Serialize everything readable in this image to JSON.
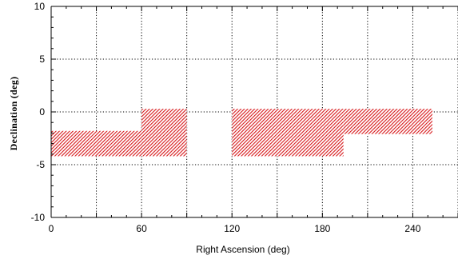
{
  "chart_data": {
    "type": "area",
    "xlabel": "Right Ascension (deg)",
    "ylabel": "Declination (deg)",
    "xlim": [
      0,
      270
    ],
    "ylim": [
      -10,
      10
    ],
    "x_ticks": [
      0,
      60,
      120,
      180,
      240
    ],
    "y_ticks": [
      -10,
      -5,
      0,
      5,
      10
    ],
    "x_grid": [
      0,
      30,
      60,
      90,
      120,
      150,
      180,
      210,
      240,
      270
    ],
    "y_grid": [
      -10,
      -5,
      0,
      5,
      10
    ],
    "grid": true,
    "grid_style": "dotted",
    "regions": [
      {
        "ra_min": 0,
        "ra_max": 60,
        "dec_min": -4.2,
        "dec_max": -1.8
      },
      {
        "ra_min": 60,
        "ra_max": 90,
        "dec_min": -4.2,
        "dec_max": 0.3
      },
      {
        "ra_min": 120,
        "ra_max": 194,
        "dec_min": -4.2,
        "dec_max": 0.3
      },
      {
        "ra_min": 194,
        "ra_max": 253,
        "dec_min": -2.1,
        "dec_max": 0.3
      }
    ],
    "fill_color": "#d7191c",
    "fill_pattern": "diagonal-hatch"
  }
}
